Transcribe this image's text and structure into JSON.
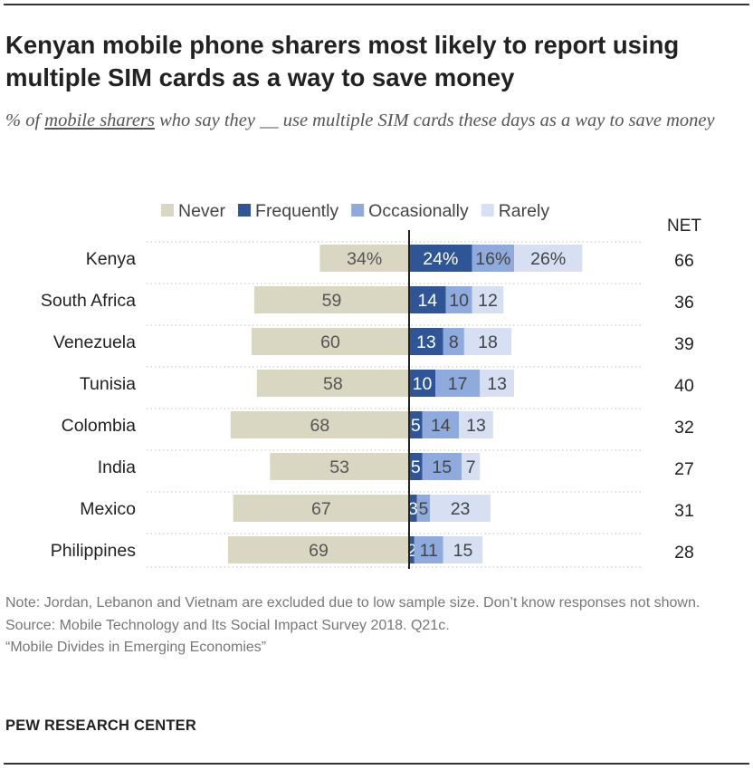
{
  "title": "Kenyan mobile phone sharers most likely to report using multiple SIM cards as a way to save money",
  "subtitle": {
    "prefix": "% of ",
    "underlined": "mobile sharers",
    "suffix": " who say they __ use multiple SIM cards these days as a way to save money"
  },
  "colors": {
    "never": "#d9d6c2",
    "frequently": "#2f5597",
    "occasionally": "#8faadc",
    "rarely": "#d6e0f2",
    "gridline": "#bfbfbf",
    "axis": "#222222"
  },
  "chart_data": {
    "type": "bar",
    "orientation": "horizontal-diverging",
    "categories": [
      "Kenya",
      "South Africa",
      "Venezuela",
      "Tunisia",
      "Colombia",
      "India",
      "Mexico",
      "Philippines"
    ],
    "series": [
      {
        "key": "never",
        "name": "Never",
        "values": [
          34,
          59,
          60,
          58,
          68,
          53,
          67,
          69
        ]
      },
      {
        "key": "frequently",
        "name": "Frequently",
        "values": [
          24,
          14,
          13,
          10,
          5,
          5,
          3,
          2
        ]
      },
      {
        "key": "occasionally",
        "name": "Occasionally",
        "values": [
          16,
          10,
          8,
          17,
          14,
          15,
          5,
          11
        ]
      },
      {
        "key": "rarely",
        "name": "Rarely",
        "values": [
          26,
          12,
          18,
          13,
          13,
          7,
          23,
          15
        ]
      }
    ],
    "labels": {
      "never": [
        "34%",
        "59",
        "60",
        "58",
        "68",
        "53",
        "67",
        "69"
      ],
      "frequently": [
        "24%",
        "14",
        "13",
        "10",
        "5",
        "5",
        "3",
        "2"
      ],
      "occasionally": [
        "16%",
        "10",
        "8",
        "17",
        "14",
        "15",
        "5",
        "11"
      ],
      "rarely": [
        "26%",
        "12",
        "18",
        "13",
        "13",
        "7",
        "23",
        "15"
      ]
    },
    "net_header": "NET",
    "net": [
      "66",
      "36",
      "39",
      "40",
      "32",
      "27",
      "31",
      "28"
    ],
    "xlim": [
      -69,
      66
    ]
  },
  "notes": {
    "note": "Note: Jordan, Lebanon and Vietnam are excluded due to low sample size. Don’t know responses not shown.",
    "source": "Source: Mobile Technology and Its Social Impact Survey 2018. Q21c.",
    "report": "“Mobile Divides in Emerging Economies”"
  },
  "brand": "PEW RESEARCH CENTER"
}
